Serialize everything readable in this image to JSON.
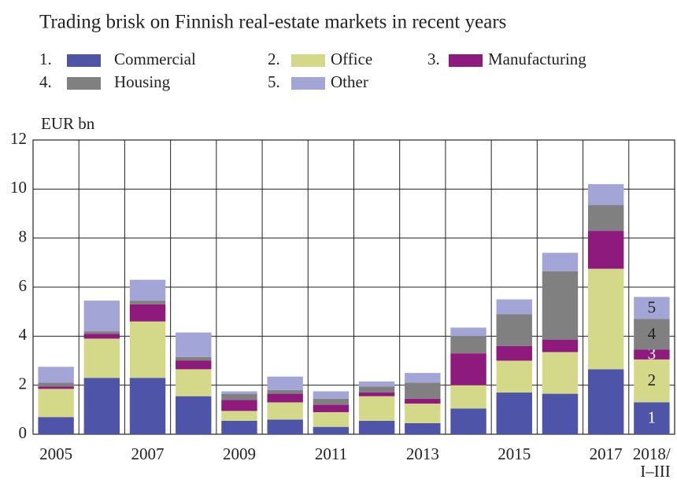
{
  "chart_data": {
    "type": "stacked_bar",
    "title": "Trading brisk on Finnish real-estate markets in recent years",
    "y_unit": "EUR bn",
    "categories": [
      "2005",
      null,
      "2007",
      null,
      "2009",
      null,
      "2011",
      null,
      "2013",
      null,
      "2015",
      null,
      "2017",
      "2018/\nI–III"
    ],
    "legend_numbers": [
      "1.",
      "2.",
      "3.",
      "4.",
      "5."
    ],
    "stack_labels": [
      1,
      2,
      3,
      4,
      5
    ],
    "series": [
      {
        "name": "Commercial",
        "color": "#4e54a8",
        "values": [
          0.7,
          2.3,
          2.3,
          1.55,
          0.55,
          0.6,
          0.3,
          0.55,
          0.45,
          1.05,
          1.7,
          1.65,
          2.65,
          1.3
        ]
      },
      {
        "name": "Office",
        "color": "#d4d98a",
        "values": [
          1.15,
          1.6,
          2.3,
          1.1,
          0.4,
          0.7,
          0.6,
          1.0,
          0.8,
          0.95,
          1.3,
          1.7,
          4.1,
          1.75
        ]
      },
      {
        "name": "Manufacturing",
        "color": "#8e1a7e",
        "values": [
          0.1,
          0.2,
          0.7,
          0.35,
          0.45,
          0.35,
          0.3,
          0.15,
          0.2,
          1.3,
          0.6,
          0.5,
          1.55,
          0.4
        ]
      },
      {
        "name": "Housing",
        "color": "#808080",
        "values": [
          0.15,
          0.1,
          0.15,
          0.15,
          0.25,
          0.15,
          0.25,
          0.25,
          0.65,
          0.7,
          1.3,
          2.8,
          1.05,
          1.25
        ]
      },
      {
        "name": "Other",
        "color": "#a3a5d6",
        "values": [
          0.65,
          1.25,
          0.85,
          1.0,
          0.1,
          0.55,
          0.3,
          0.2,
          0.4,
          0.35,
          0.6,
          0.75,
          0.85,
          0.9
        ]
      }
    ],
    "ylim": [
      0,
      12
    ],
    "yticks": [
      0,
      2,
      4,
      6,
      8,
      10,
      12
    ],
    "grid": true
  }
}
